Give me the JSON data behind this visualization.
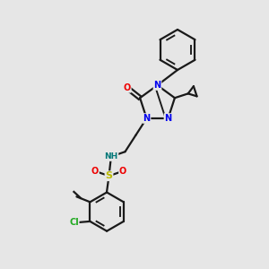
{
  "background_color": "#e6e6e6",
  "bond_color": "#1a1a1a",
  "bond_width": 1.6,
  "atom_colors": {
    "N": "#0000ee",
    "O": "#ee0000",
    "S": "#bbbb00",
    "Cl": "#22aa22",
    "H": "#007777",
    "C": "#1a1a1a"
  },
  "figsize": [
    3.0,
    3.0
  ],
  "dpi": 100,
  "xlim": [
    0,
    10
  ],
  "ylim": [
    0,
    10
  ]
}
